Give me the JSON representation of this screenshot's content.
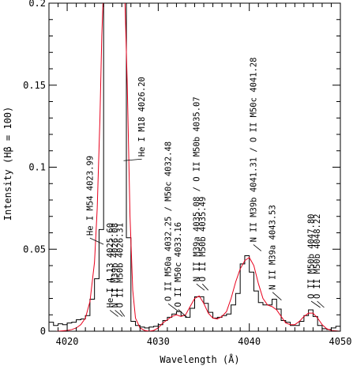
{
  "chart_data": {
    "type": "line",
    "title": "",
    "xlabel": "Wavelength (Å)",
    "ylabel": "Intensity (Hβ = 100)",
    "xlim": [
      4018,
      4050
    ],
    "ylim": [
      0,
      0.2
    ],
    "x_ticks": [
      4020,
      4030,
      4040,
      4050
    ],
    "x_tick_labels": [
      "4020",
      "4030",
      "4040",
      "4050"
    ],
    "y_ticks": [
      0,
      0.05,
      0.1,
      0.15,
      0.2
    ],
    "y_tick_labels": [
      "0",
      "0.05",
      "0.1",
      "0.15",
      "0.2"
    ],
    "series": [
      {
        "name": "",
        "style": "step",
        "color": "#000000",
        "x": [
          4018,
          4018.5,
          4019,
          4019.5,
          4020,
          4020.5,
          4021,
          4021.5,
          4022,
          4022.5,
          4023,
          4023.5,
          4024,
          4024.5,
          4025,
          4025.5,
          4026,
          4026.5,
          4027,
          4027.5,
          4028,
          4028.5,
          4029,
          4029.5,
          4030,
          4030.5,
          4031,
          4031.5,
          4032,
          4032.5,
          4033,
          4033.5,
          4034,
          4034.5,
          4035,
          4035.5,
          4036,
          4036.5,
          4037,
          4037.5,
          4038,
          4038.5,
          4039,
          4039.5,
          4040,
          4040.5,
          4041,
          4041.5,
          4042,
          4042.5,
          4043,
          4043.5,
          4044,
          4044.5,
          4045,
          4045.5,
          4046,
          4046.5,
          4047,
          4047.5,
          4048,
          4048.5,
          4049,
          4049.5
        ],
        "values": [
          0.0055,
          0.0035,
          0.0045,
          0.004,
          0.005,
          0.0055,
          0.007,
          0.0075,
          0.0095,
          0.0195,
          0.032,
          0.062,
          0.21,
          0.21,
          0.21,
          0.21,
          0.21,
          0.057,
          0.006,
          0.0035,
          0.0025,
          0.002,
          0.0025,
          0.003,
          0.004,
          0.0065,
          0.0085,
          0.0105,
          0.012,
          0.0095,
          0.0085,
          0.014,
          0.021,
          0.021,
          0.017,
          0.0115,
          0.008,
          0.0085,
          0.0095,
          0.0105,
          0.016,
          0.023,
          0.041,
          0.046,
          0.036,
          0.0245,
          0.0175,
          0.016,
          0.016,
          0.0195,
          0.0135,
          0.0065,
          0.0055,
          0.0035,
          0.0035,
          0.006,
          0.0095,
          0.013,
          0.009,
          0.0035,
          0.0015,
          0.001,
          0.002,
          0.003
        ]
      },
      {
        "name": "",
        "style": "line",
        "color": "#e8001c",
        "x": [
          4018,
          4019,
          4020,
          4020.5,
          4021,
          4021.5,
          4022,
          4022.5,
          4023,
          4023.3,
          4023.6,
          4023.8,
          4024.0,
          4026.3,
          4026.6,
          4026.9,
          4027.2,
          4027.5,
          4028,
          4028.5,
          4029,
          4029.5,
          4030,
          4030.5,
          4031,
          4031.5,
          4032,
          4032.5,
          4033,
          4033.5,
          4034,
          4034.5,
          4035,
          4035.5,
          4036,
          4036.5,
          4037,
          4037.5,
          4038,
          4038.5,
          4039,
          4039.5,
          4040,
          4040.5,
          4041,
          4041.5,
          4042,
          4042.5,
          4043,
          4043.5,
          4044,
          4044.5,
          4045,
          4045.5,
          4046,
          4046.5,
          4047,
          4047.5,
          4048,
          4048.5,
          4049,
          4050
        ],
        "values": [
          0,
          0,
          0.0005,
          0.001,
          0.002,
          0.004,
          0.008,
          0.018,
          0.042,
          0.075,
          0.13,
          0.18,
          0.21,
          0.21,
          0.15,
          0.07,
          0.025,
          0.008,
          0.002,
          0.0005,
          0,
          0.0005,
          0.002,
          0.005,
          0.007,
          0.009,
          0.01,
          0.009,
          0.01,
          0.015,
          0.02,
          0.0215,
          0.017,
          0.011,
          0.008,
          0.0075,
          0.009,
          0.012,
          0.02,
          0.03,
          0.038,
          0.043,
          0.045,
          0.04,
          0.029,
          0.02,
          0.016,
          0.015,
          0.013,
          0.009,
          0.005,
          0.004,
          0.004,
          0.006,
          0.009,
          0.011,
          0.011,
          0.008,
          0.004,
          0.0015,
          0.0005,
          0
        ]
      }
    ],
    "annotations": [
      {
        "label": "He I M54 4023.99",
        "x": 4023.99,
        "y": 0.052
      },
      {
        "label": "He I 4.13 4025.60",
        "x": 4025.6,
        "y": 0.008
      },
      {
        "label": "N II M39b 4026.08",
        "x": 4026.08,
        "y": 0.008
      },
      {
        "label": "O II M50b 4026.31",
        "x": 4026.31,
        "y": 0.008
      },
      {
        "label": "He I M18 4026.20",
        "x": 4026.2,
        "y": 0.103
      },
      {
        "label": "O II M50a 4032.25 / M50c 4032.48",
        "x": 4032.25,
        "y": 0.011
      },
      {
        "label": "O II M50c 4033.16",
        "x": 4033.16,
        "y": 0.0075
      },
      {
        "label": "N II M39a 4035.08 / O II M50b 4035.07",
        "x": 4035.08,
        "y": 0.024
      },
      {
        "label": "O II M50b 4035.49",
        "x": 4035.49,
        "y": 0.024
      },
      {
        "label": "N II M39b 4041.31 / O II M50c 4041.28",
        "x": 4041.31,
        "y": 0.048
      },
      {
        "label": "N II M39a 4043.53",
        "x": 4043.53,
        "y": 0.018
      },
      {
        "label": "O II M50b 4047.80",
        "x": 4047.8,
        "y": 0.0135
      },
      {
        "label": "O II M50b 4048.22",
        "x": 4048.22,
        "y": 0.0135
      }
    ]
  }
}
